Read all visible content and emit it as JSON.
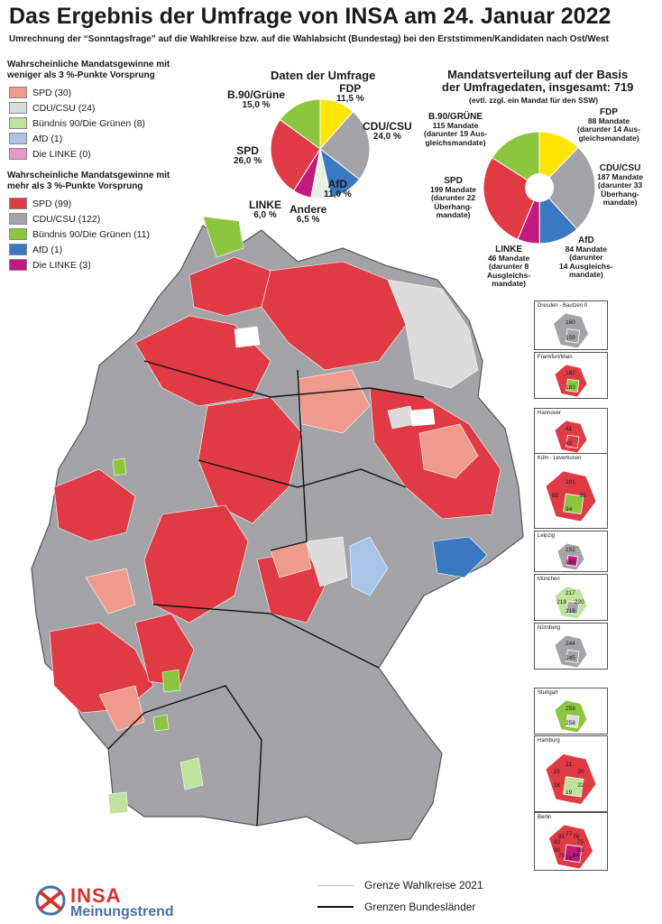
{
  "title": "Das Ergebnis der Umfrage von INSA am 24. Januar 2022",
  "subtitle": "Umrechnung der “Sonntagsfrage” auf die Wahlkreise bzw. auf die Wahlabsicht (Bundestag) bei den Erststimmen/Kandidaten nach Ost/West",
  "legend_weak": {
    "heading_line1": "Wahrscheinliche Mandatsgewinne mit",
    "heading_line2": "weniger als 3 %-Punkte Vorsprung",
    "items": [
      {
        "label": "SPD (30)",
        "color": "#ee9a8c"
      },
      {
        "label": "CDU/CSU (24)",
        "color": "#dcdcdc"
      },
      {
        "label": "Bündnis 90/Die Grünen (8)",
        "color": "#bfe39a"
      },
      {
        "label": "AfD (1)",
        "color": "#a9c4e6"
      },
      {
        "label": "Die LINKE (0)",
        "color": "#e59ac8"
      }
    ]
  },
  "legend_strong": {
    "heading_line1": "Wahrscheinliche Mandatsgewinne mit",
    "heading_line2": "mehr als 3 %-Punkte Vorsprung",
    "items": [
      {
        "label": "SPD (99)",
        "color": "#e03a44"
      },
      {
        "label": "CDU/CSU (122)",
        "color": "#a4a4a8"
      },
      {
        "label": "Bündnis 90/Die Grünen (11)",
        "color": "#8cc63f"
      },
      {
        "label": "AfD (1)",
        "color": "#3a78c2"
      },
      {
        "label": "Die LINKE (3)",
        "color": "#c2187f"
      }
    ]
  },
  "chart_data": [
    {
      "type": "pie",
      "title": "Daten der Umfrage",
      "series": [
        {
          "name": "FDP",
          "value": 11.5,
          "label": "11,5 %",
          "color": "#ffe500"
        },
        {
          "name": "CDU/CSU",
          "value": 24.0,
          "label": "24,0 %",
          "color": "#a4a4a8"
        },
        {
          "name": "AfD",
          "value": 11.0,
          "label": "11,0 %",
          "color": "#3a78c2"
        },
        {
          "name": "Andere",
          "value": 6.5,
          "label": "6,5 %",
          "color": "#e8f0e0"
        },
        {
          "name": "LINKE",
          "value": 6.0,
          "label": "6,0 %",
          "color": "#c2187f"
        },
        {
          "name": "SPD",
          "value": 26.0,
          "label": "26,0 %",
          "color": "#e03a44"
        },
        {
          "name": "B.90/Grüne",
          "value": 15.0,
          "label": "15,0 %",
          "color": "#8cc63f"
        }
      ]
    },
    {
      "type": "pie",
      "title_line1": "Mandatsverteilung auf der Basis",
      "title_line2": "der Umfragedaten, insgesamt: 719",
      "title_line3": "(evtl. zzgl. ein Mandat für den SSW)",
      "series": [
        {
          "name": "FDP",
          "value": 88,
          "label_lines": [
            "88 Mandate",
            "(darunter 14 Aus-",
            "gleichsmandate)"
          ],
          "color": "#ffe500"
        },
        {
          "name": "CDU/CSU",
          "value": 187,
          "label_lines": [
            "187 Mandate",
            "(darunter 33",
            "Überhang-",
            "mandate)"
          ],
          "color": "#a4a4a8"
        },
        {
          "name": "AfD",
          "value": 84,
          "label_lines": [
            "84 Mandate",
            "(darunter",
            "14 Ausgleichs-",
            "mandate)"
          ],
          "color": "#3a78c2"
        },
        {
          "name": "LINKE",
          "value": 46,
          "label_lines": [
            "46 Mandate",
            "(darunter 8",
            "Ausgleichs-",
            "mandate)"
          ],
          "color": "#c2187f"
        },
        {
          "name": "SPD",
          "value": 199,
          "label_lines": [
            "199 Mandate",
            "(darunter 22",
            "Überhang-",
            "mandate)"
          ],
          "color": "#e03a44"
        },
        {
          "name": "B.90/GRÜNE",
          "value": 115,
          "label_lines": [
            "115 Mandate",
            "(darunter 19 Aus-",
            "gleichsmandate)"
          ],
          "color": "#8cc63f"
        }
      ]
    }
  ],
  "map_colors": {
    "spd_strong": "#e03a44",
    "spd_weak": "#ee9a8c",
    "cdu_strong": "#a4a4a8",
    "cdu_weak": "#dcdcdc",
    "green_strong": "#8cc63f",
    "green_weak": "#bfe39a",
    "afd_strong": "#3a78c2",
    "afd_weak": "#a9c4e6",
    "linke_strong": "#c2187f"
  },
  "insets": [
    {
      "name": "Dresden - Bautzen II",
      "numbers": [
        "160",
        "159"
      ]
    },
    {
      "name": "Frankfurt/Main",
      "numbers": [
        "182",
        "183"
      ]
    },
    {
      "name": "Hannover",
      "numbers": [
        "41",
        "42"
      ]
    },
    {
      "name": "Köln - Leverkusen",
      "numbers": [
        "101",
        "95",
        "94",
        "93"
      ]
    },
    {
      "name": "Leipzig",
      "numbers": [
        "152",
        "153"
      ]
    },
    {
      "name": "München",
      "numbers": [
        "217",
        "220",
        "218",
        "219"
      ]
    },
    {
      "name": "Nürnberg",
      "numbers": [
        "244",
        "245"
      ]
    },
    {
      "name": "Stuttgart",
      "numbers": [
        "259",
        "258"
      ]
    },
    {
      "name": "Hamburg",
      "numbers": [
        "21",
        "20",
        "22",
        "19",
        "18",
        "23"
      ]
    },
    {
      "name": "Berlin",
      "numbers": [
        "77",
        "76",
        "75",
        "83",
        "84",
        "78",
        "79",
        "80",
        "82",
        "81"
      ]
    }
  ],
  "bottom_legend": {
    "wahlkreise": "Grenze Wahlkreise 2021",
    "bundeslaender": "Grenzen Bundesländer"
  },
  "logo": {
    "top": "INSA",
    "bottom": "Meinungstrend"
  }
}
